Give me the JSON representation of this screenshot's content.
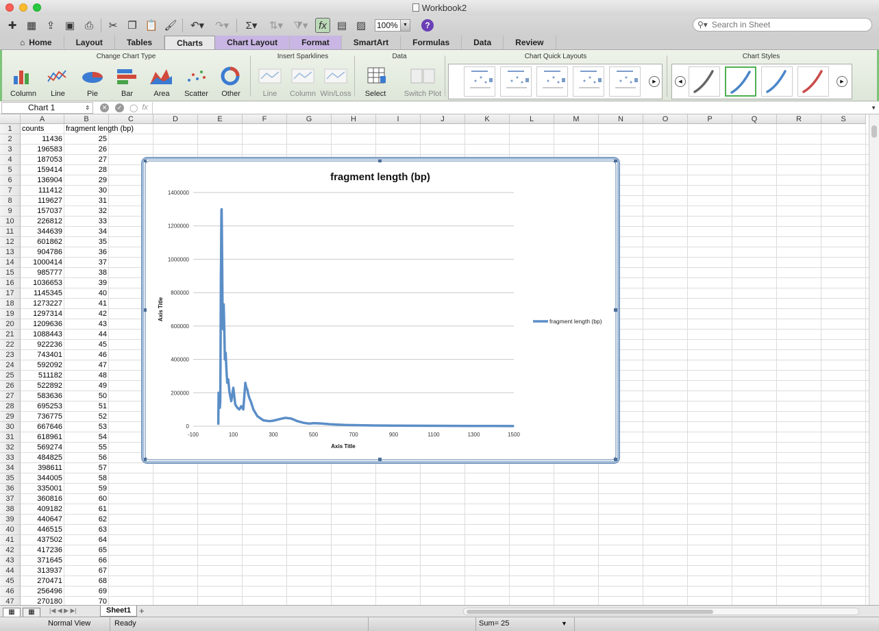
{
  "window": {
    "title": "Workbook2"
  },
  "toolbar": {
    "zoom": "100%",
    "help": "?",
    "search_placeholder": "Search in Sheet"
  },
  "tabs": [
    "Home",
    "Layout",
    "Tables",
    "Charts",
    "Chart Layout",
    "Format",
    "SmartArt",
    "Formulas",
    "Data",
    "Review"
  ],
  "active_tab": "Charts",
  "ribbon": {
    "groups": {
      "change_chart_type": "Change Chart Type",
      "insert_sparklines": "Insert Sparklines",
      "data": "Data",
      "quick_layouts": "Chart Quick Layouts",
      "styles": "Chart Styles"
    },
    "chart_types": [
      "Column",
      "Line",
      "Pie",
      "Bar",
      "Area",
      "Scatter",
      "Other"
    ],
    "sparklines": [
      "Line",
      "Column",
      "Win/Loss"
    ],
    "data_buttons": [
      "Select",
      "Switch Plot"
    ],
    "style_colors": [
      "#666666",
      "#4a86c8",
      "#4a86c8",
      "#c84a4a"
    ]
  },
  "formula_bar": {
    "name_box": "Chart 1",
    "fx": "fx"
  },
  "columns": [
    "A",
    "B",
    "C",
    "D",
    "E",
    "F",
    "G",
    "H",
    "I",
    "J",
    "K",
    "L",
    "M",
    "N",
    "O",
    "P",
    "Q",
    "R",
    "S"
  ],
  "rows": [
    "1",
    "2",
    "3",
    "4",
    "5",
    "6",
    "7",
    "8",
    "9",
    "10",
    "11",
    "12",
    "13",
    "14",
    "15",
    "16",
    "17",
    "18",
    "19",
    "20",
    "21",
    "22",
    "23",
    "24",
    "25",
    "26",
    "27",
    "28",
    "29",
    "30",
    "31",
    "32",
    "33",
    "34",
    "35",
    "36",
    "37",
    "38",
    "39",
    "40",
    "41",
    "42",
    "43",
    "44",
    "45",
    "46",
    "47"
  ],
  "header_row": [
    "counts",
    "fragment length (bp)"
  ],
  "data_rows": [
    [
      "11436",
      "25"
    ],
    [
      "196583",
      "26"
    ],
    [
      "187053",
      "27"
    ],
    [
      "159414",
      "28"
    ],
    [
      "136904",
      "29"
    ],
    [
      "111412",
      "30"
    ],
    [
      "119627",
      "31"
    ],
    [
      "157037",
      "32"
    ],
    [
      "226812",
      "33"
    ],
    [
      "344639",
      "34"
    ],
    [
      "601862",
      "35"
    ],
    [
      "904786",
      "36"
    ],
    [
      "1000414",
      "37"
    ],
    [
      "985777",
      "38"
    ],
    [
      "1036653",
      "39"
    ],
    [
      "1145345",
      "40"
    ],
    [
      "1273227",
      "41"
    ],
    [
      "1297314",
      "42"
    ],
    [
      "1209636",
      "43"
    ],
    [
      "1088443",
      "44"
    ],
    [
      "922236",
      "45"
    ],
    [
      "743401",
      "46"
    ],
    [
      "592092",
      "47"
    ],
    [
      "511182",
      "48"
    ],
    [
      "522892",
      "49"
    ],
    [
      "583636",
      "50"
    ],
    [
      "695253",
      "51"
    ],
    [
      "736775",
      "52"
    ],
    [
      "667646",
      "53"
    ],
    [
      "618961",
      "54"
    ],
    [
      "569274",
      "55"
    ],
    [
      "484825",
      "56"
    ],
    [
      "398611",
      "57"
    ],
    [
      "344005",
      "58"
    ],
    [
      "335001",
      "59"
    ],
    [
      "360816",
      "60"
    ],
    [
      "409182",
      "61"
    ],
    [
      "440647",
      "62"
    ],
    [
      "446515",
      "63"
    ],
    [
      "437502",
      "64"
    ],
    [
      "417236",
      "65"
    ],
    [
      "371645",
      "66"
    ],
    [
      "313937",
      "67"
    ],
    [
      "270471",
      "68"
    ],
    [
      "256496",
      "69"
    ],
    [
      "270180",
      "70"
    ]
  ],
  "chart_data": {
    "type": "scatter",
    "title": "fragment length (bp)",
    "xlabel": "Axis Title",
    "ylabel": "Axis Title",
    "xlim": [
      -100,
      1500
    ],
    "ylim": [
      0,
      1400000
    ],
    "xticks": [
      "-100",
      "100",
      "300",
      "500",
      "700",
      "900",
      "1100",
      "1300",
      "1500"
    ],
    "yticks": [
      "0",
      "200000",
      "400000",
      "600000",
      "800000",
      "1000000",
      "1200000",
      "1400000"
    ],
    "grid": true,
    "legend": "right",
    "series": [
      {
        "name": "fragment length (bp)",
        "color": "#5b8ec7",
        "x": [
          25,
          27,
          29,
          31,
          33,
          35,
          36,
          37,
          38,
          39,
          40,
          41,
          42,
          43,
          45,
          47,
          50,
          52,
          55,
          58,
          62,
          66,
          70,
          75,
          80,
          85,
          90,
          100,
          110,
          120,
          130,
          140,
          150,
          160,
          165,
          170,
          175,
          180,
          190,
          200,
          220,
          250,
          280,
          300,
          330,
          360,
          390,
          420,
          450,
          480,
          500,
          540,
          580,
          620,
          660,
          700,
          750,
          800,
          900,
          1000,
          1100,
          1200,
          1300,
          1400,
          1500
        ],
        "y": [
          10000,
          200000,
          160000,
          130000,
          110000,
          150000,
          340000,
          600000,
          900000,
          1000000,
          1150000,
          1290000,
          1300000,
          1200000,
          920000,
          590000,
          580000,
          730000,
          600000,
          400000,
          440000,
          330000,
          260000,
          280000,
          210000,
          180000,
          150000,
          230000,
          130000,
          110000,
          100000,
          120000,
          100000,
          260000,
          230000,
          220000,
          190000,
          170000,
          140000,
          100000,
          60000,
          35000,
          30000,
          33000,
          42000,
          50000,
          45000,
          30000,
          20000,
          15000,
          18000,
          16000,
          12000,
          9000,
          7000,
          6000,
          5000,
          4000,
          3000,
          2500,
          2000,
          1500,
          1000,
          800,
          600
        ]
      }
    ]
  },
  "sheet_tabs": [
    "Sheet1"
  ],
  "status": {
    "view": "Normal View",
    "state": "Ready",
    "sum": "Sum= 25"
  }
}
